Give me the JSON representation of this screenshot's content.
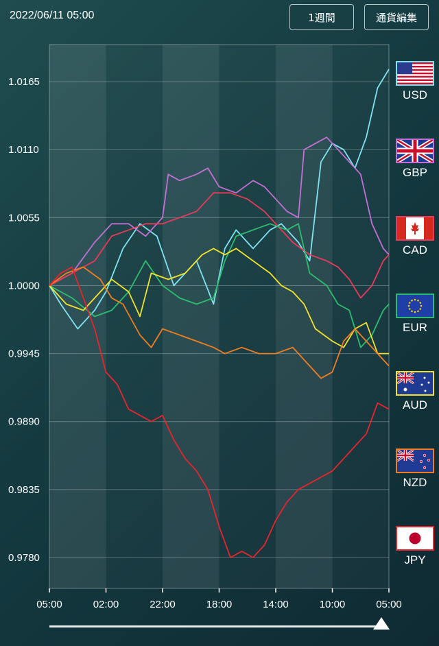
{
  "header": {
    "datetime": "2022/06/11 05:00",
    "period_button": "1週間",
    "edit_button": "通貨編集"
  },
  "legend": [
    {
      "code": "USD",
      "icon": "us-flag-icon",
      "color": "#7fe3f2"
    },
    {
      "code": "GBP",
      "icon": "uk-flag-icon",
      "color": "#c46fd6"
    },
    {
      "code": "CAD",
      "icon": "canada-flag-icon",
      "color": "#e83a5a"
    },
    {
      "code": "EUR",
      "icon": "eu-flag-icon",
      "color": "#2dbd6e"
    },
    {
      "code": "AUD",
      "icon": "australia-flag-icon",
      "color": "#f2e22c"
    },
    {
      "code": "NZD",
      "icon": "new-zealand-flag-icon",
      "color": "#f07d1f"
    },
    {
      "code": "JPY",
      "icon": "japan-flag-icon",
      "color": "#e8242c"
    }
  ],
  "chart_data": {
    "type": "line",
    "title": "",
    "xlabel": "",
    "ylabel": "",
    "grid": true,
    "ylim": [
      0.9755,
      1.0195
    ],
    "xlim": [
      0,
      6
    ],
    "x_ticks": [
      {
        "x": 0,
        "label": "05:00"
      },
      {
        "x": 1,
        "label": "02:00"
      },
      {
        "x": 2,
        "label": "22:00"
      },
      {
        "x": 3,
        "label": "18:00"
      },
      {
        "x": 4,
        "label": "14:00"
      },
      {
        "x": 5,
        "label": "10:00"
      },
      {
        "x": 6,
        "label": "05:00"
      }
    ],
    "y_ticks": [
      1.0165,
      1.011,
      1.0055,
      1.0,
      0.9945,
      0.989,
      0.9835,
      0.978
    ],
    "series": [
      {
        "name": "USD",
        "color": "#7fe3f2",
        "x": [
          0,
          0.2,
          0.5,
          0.8,
          1.0,
          1.3,
          1.6,
          1.9,
          2.2,
          2.4,
          2.6,
          2.9,
          3.1,
          3.3,
          3.6,
          3.9,
          4.1,
          4.4,
          4.6,
          4.8,
          5.0,
          5.2,
          5.4,
          5.6,
          5.8,
          6.0
        ],
        "y": [
          1.0,
          0.9985,
          0.9965,
          0.998,
          0.9995,
          1.003,
          1.005,
          1.004,
          1.0,
          1.001,
          1.002,
          0.9985,
          1.003,
          1.0045,
          1.003,
          1.0045,
          1.005,
          1.0035,
          1.002,
          1.01,
          1.0115,
          1.011,
          1.0095,
          1.012,
          1.016,
          1.0175
        ]
      },
      {
        "name": "GBP",
        "color": "#c46fd6",
        "x": [
          0,
          0.4,
          0.8,
          1.1,
          1.4,
          1.7,
          2.0,
          2.1,
          2.3,
          2.6,
          2.8,
          3.0,
          3.3,
          3.6,
          3.8,
          4.0,
          4.2,
          4.4,
          4.5,
          4.7,
          4.9,
          5.1,
          5.3,
          5.5,
          5.7,
          5.9,
          6.0
        ],
        "y": [
          1.0,
          1.001,
          1.0035,
          1.005,
          1.005,
          1.004,
          1.0055,
          1.009,
          1.0085,
          1.009,
          1.0095,
          1.008,
          1.0075,
          1.0085,
          1.008,
          1.007,
          1.006,
          1.0055,
          1.011,
          1.0115,
          1.012,
          1.011,
          1.01,
          1.009,
          1.005,
          1.003,
          1.0025
        ]
      },
      {
        "name": "CAD",
        "color": "#e83a5a",
        "x": [
          0,
          0.4,
          0.8,
          1.1,
          1.4,
          1.7,
          2.0,
          2.3,
          2.6,
          2.9,
          3.2,
          3.5,
          3.8,
          4.0,
          4.3,
          4.6,
          4.9,
          5.1,
          5.3,
          5.5,
          5.7,
          5.9,
          6.0
        ],
        "y": [
          1.0,
          1.001,
          1.002,
          1.004,
          1.0045,
          1.005,
          1.005,
          1.0055,
          1.006,
          1.0075,
          1.0075,
          1.007,
          1.006,
          1.005,
          1.0035,
          1.0025,
          1.002,
          1.0015,
          1.0005,
          0.999,
          1.0,
          1.002,
          1.0025
        ]
      },
      {
        "name": "EUR",
        "color": "#2dbd6e",
        "x": [
          0,
          0.4,
          0.8,
          1.1,
          1.4,
          1.7,
          2.0,
          2.3,
          2.6,
          2.9,
          3.1,
          3.3,
          3.6,
          3.9,
          4.2,
          4.4,
          4.6,
          4.9,
          5.1,
          5.3,
          5.5,
          5.7,
          5.9,
          6.0
        ],
        "y": [
          1.0,
          0.999,
          0.9975,
          0.998,
          0.9995,
          1.002,
          1.0,
          0.999,
          0.9985,
          0.999,
          1.002,
          1.004,
          1.0045,
          1.005,
          1.0045,
          1.005,
          1.001,
          1.0,
          0.9985,
          0.998,
          0.995,
          0.996,
          0.998,
          0.9985
        ]
      },
      {
        "name": "AUD",
        "color": "#f2e22c",
        "x": [
          0,
          0.3,
          0.6,
          0.9,
          1.1,
          1.4,
          1.6,
          1.8,
          2.1,
          2.4,
          2.7,
          2.9,
          3.1,
          3.3,
          3.6,
          3.9,
          4.1,
          4.3,
          4.5,
          4.7,
          5.0,
          5.2,
          5.4,
          5.6,
          5.8,
          6.0
        ],
        "y": [
          1.0,
          0.9985,
          0.998,
          0.9995,
          1.0005,
          0.9995,
          0.9975,
          1.001,
          1.0005,
          1.001,
          1.0025,
          1.003,
          1.0025,
          1.003,
          1.002,
          1.001,
          1.0,
          0.9995,
          0.9985,
          0.9965,
          0.9955,
          0.995,
          0.9965,
          0.997,
          0.9945,
          0.9945
        ]
      },
      {
        "name": "NZD",
        "color": "#f07d1f",
        "x": [
          0,
          0.3,
          0.6,
          0.9,
          1.1,
          1.3,
          1.6,
          1.8,
          2.0,
          2.3,
          2.6,
          2.9,
          3.1,
          3.4,
          3.7,
          4.0,
          4.3,
          4.6,
          4.8,
          5.0,
          5.2,
          5.4,
          5.6,
          5.8,
          6.0
        ],
        "y": [
          1.0,
          1.001,
          1.0015,
          1.0005,
          0.999,
          0.9985,
          0.996,
          0.995,
          0.9965,
          0.996,
          0.9955,
          0.995,
          0.9945,
          0.995,
          0.9945,
          0.9945,
          0.995,
          0.9935,
          0.9925,
          0.993,
          0.9955,
          0.9965,
          0.9955,
          0.9945,
          0.9935
        ]
      },
      {
        "name": "JPY",
        "color": "#e8242c",
        "x": [
          0,
          0.2,
          0.4,
          0.6,
          0.8,
          1.0,
          1.2,
          1.4,
          1.6,
          1.8,
          2.0,
          2.2,
          2.4,
          2.6,
          2.8,
          3.0,
          3.2,
          3.4,
          3.6,
          3.8,
          4.0,
          4.2,
          4.4,
          4.6,
          4.8,
          5.0,
          5.2,
          5.4,
          5.6,
          5.8,
          6.0
        ],
        "y": [
          1.0,
          1.001,
          1.0015,
          0.999,
          0.9965,
          0.993,
          0.992,
          0.99,
          0.9895,
          0.989,
          0.9895,
          0.9875,
          0.986,
          0.985,
          0.9835,
          0.9805,
          0.978,
          0.9785,
          0.978,
          0.979,
          0.981,
          0.9825,
          0.9835,
          0.984,
          0.9845,
          0.985,
          0.986,
          0.987,
          0.988,
          0.9905,
          0.99
        ]
      }
    ]
  }
}
